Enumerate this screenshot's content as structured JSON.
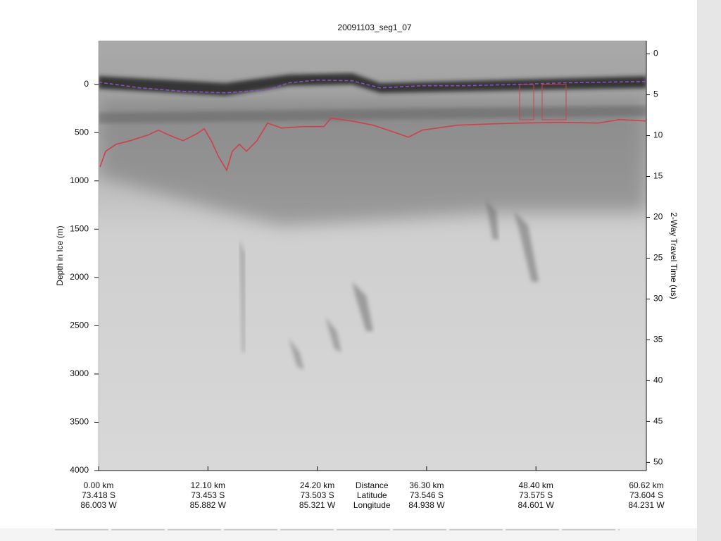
{
  "chart_data": {
    "type": "radargram",
    "title": "20091103_seg1_07",
    "ylabel": "Depth in Ice (m)",
    "y2label": "2-Way Travel Time (us)",
    "xlim": [
      0,
      60.62
    ],
    "ylim": [
      -450,
      4000
    ],
    "y_inverted": true,
    "yticks": [
      0,
      500,
      1000,
      1500,
      2000,
      2500,
      3000,
      3500,
      4000
    ],
    "y2lim": [
      -1.6,
      51
    ],
    "y2ticks": [
      0,
      5,
      10,
      15,
      20,
      25,
      30,
      35,
      40,
      45,
      50
    ],
    "xtick_row_names": [
      "Distance",
      "Latitude",
      "Longitude"
    ],
    "xticks": [
      {
        "value": 0,
        "label": "0.00 km"
      },
      {
        "value": 12.1,
        "label": "12.10 km"
      },
      {
        "value": 24.2,
        "label": "24.20 km"
      },
      {
        "value": 36.3,
        "label": "36.30 km"
      },
      {
        "value": 48.4,
        "label": "48.40 km"
      },
      {
        "value": 60.62,
        "label": "60.62 km"
      }
    ],
    "xtick_latitudes": [
      "73.418 S",
      "73.453 S",
      "73.503 S",
      "73.546 S",
      "73.575 S",
      "73.604 S"
    ],
    "xtick_longitudes": [
      "86.003 W",
      "85.882 W",
      "85.321 W",
      "84.938 W",
      "84.601 W",
      "84.231 W"
    ],
    "series": [
      {
        "color": "#8a4fbf",
        "dashed": true,
        "x": [
          0,
          4.68,
          9.35,
          14.03,
          18.7,
          21.04,
          24.15,
          28.05,
          31.17,
          35.84,
          40.52,
          46.75,
          51.43,
          60.54
        ],
        "values": [
          -22,
          37,
          73,
          88,
          58,
          -15,
          -44,
          -37,
          37,
          15,
          15,
          0,
          -15,
          -29
        ]
      },
      {
        "color": "#d0404a",
        "dashed": false,
        "x": [
          0.16,
          0.78,
          1.95,
          3.51,
          5.45,
          6.62,
          7.79,
          9.35,
          10.91,
          11.69,
          12.47,
          13.25,
          14.18,
          14.8,
          15.58,
          16.36,
          17.53,
          18.7,
          20.26,
          22.6,
          24.93,
          25.71,
          28.05,
          30.39,
          32.73,
          34.28,
          35.84,
          39.74,
          43.64,
          46.75,
          51.43,
          55.3,
          57.66,
          60.54
        ],
        "values": [
          854,
          694,
          621,
          584,
          526,
          475,
          526,
          584,
          511,
          460,
          584,
          745,
          890,
          694,
          621,
          694,
          584,
          401,
          453,
          438,
          438,
          350,
          380,
          423,
          496,
          547,
          474,
          423,
          409,
          401,
          394,
          401,
          365,
          380
        ]
      }
    ]
  }
}
